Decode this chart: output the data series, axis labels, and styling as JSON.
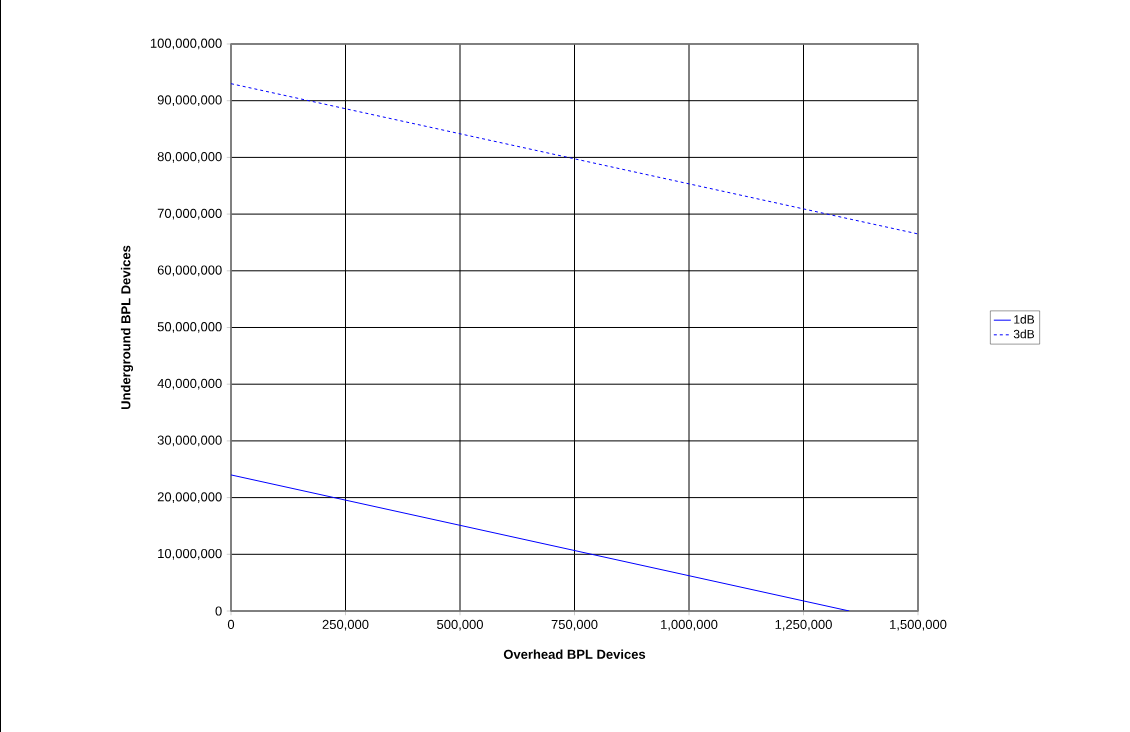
{
  "chart_data": {
    "type": "line",
    "xlabel": "Overhead BPL Devices",
    "ylabel": "Underground BPL Devices",
    "series": [
      {
        "name": "1dB",
        "color": "#0000ff",
        "line_style": "solid",
        "x": [
          0,
          1350000
        ],
        "values": [
          24000000,
          0
        ]
      },
      {
        "name": "3dB",
        "color": "#0000ff",
        "line_style": "dashed",
        "x": [
          0,
          1500000
        ],
        "values": [
          93000000,
          66500000
        ]
      }
    ],
    "xlim": [
      0,
      1500000
    ],
    "ylim": [
      0,
      100000000
    ],
    "xticks": [
      {
        "value": 0,
        "label": "0"
      },
      {
        "value": 250000,
        "label": "250,000"
      },
      {
        "value": 500000,
        "label": "500,000"
      },
      {
        "value": 750000,
        "label": "750,000"
      },
      {
        "value": 1000000,
        "label": "1,000,000"
      },
      {
        "value": 1250000,
        "label": "1,250,000"
      },
      {
        "value": 1500000,
        "label": "1,500,000"
      }
    ],
    "yticks": [
      {
        "value": 0,
        "label": "0"
      },
      {
        "value": 10000000,
        "label": "10,000,000"
      },
      {
        "value": 20000000,
        "label": "20,000,000"
      },
      {
        "value": 30000000,
        "label": "30,000,000"
      },
      {
        "value": 40000000,
        "label": "40,000,000"
      },
      {
        "value": 50000000,
        "label": "50,000,000"
      },
      {
        "value": 60000000,
        "label": "60,000,000"
      },
      {
        "value": 70000000,
        "label": "70,000,000"
      },
      {
        "value": 80000000,
        "label": "80,000,000"
      },
      {
        "value": 90000000,
        "label": "90,000,000"
      },
      {
        "value": 100000000,
        "label": "100,000,000"
      }
    ],
    "grid": true,
    "legend": "right",
    "marker": "none"
  }
}
